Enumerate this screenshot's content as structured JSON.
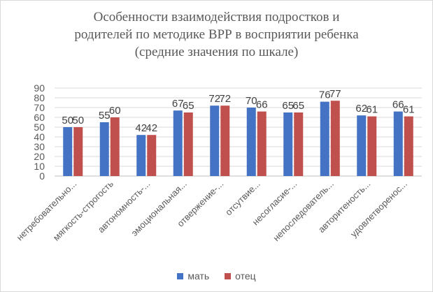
{
  "chart_data": {
    "type": "bar",
    "title_lines": [
      "Особенности взаимодействия подростков и",
      "родителей по методике ВРР в восприятии ребенка",
      "(средние значения по шкале)"
    ],
    "categories": [
      "нетребовательно...",
      "мягкость-строгость",
      "автономность-...",
      "эмоциональная...",
      "отвержение-...",
      "отсутвие...",
      "несогласие-...",
      "непоследователь...",
      "авторитеность...",
      "удовлетворенос..."
    ],
    "series": [
      {
        "name": "мать",
        "color": "#4472c4",
        "values": [
          50,
          55,
          42,
          67,
          72,
          70,
          65,
          76,
          62,
          66
        ]
      },
      {
        "name": "отец",
        "color": "#c0504d",
        "values": [
          50,
          60,
          42,
          65,
          72,
          66,
          65,
          77,
          61,
          61
        ]
      }
    ],
    "ylim": [
      0,
      90
    ],
    "yticks": [
      0,
      10,
      20,
      30,
      40,
      50,
      60,
      70,
      80,
      90
    ],
    "grid": true,
    "legend_position": "bottom"
  }
}
